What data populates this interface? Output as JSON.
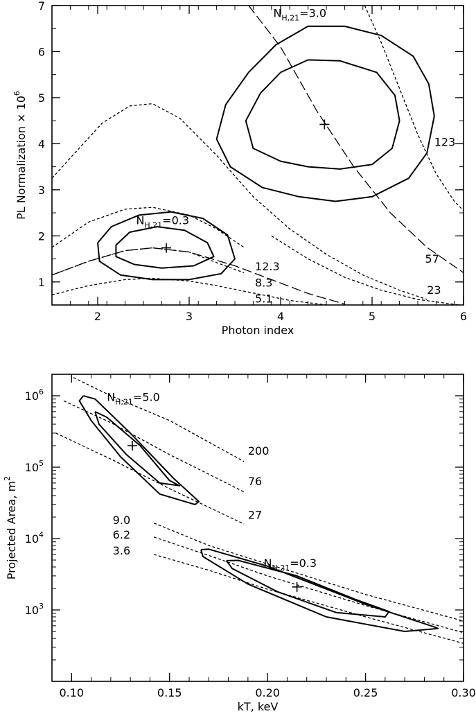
{
  "chart_data": [
    {
      "type": "line",
      "xlabel": "Photon index",
      "ylabel": "PL Normalization × 10",
      "ylabel_exp": "6",
      "xlim": [
        1.5,
        6.0
      ],
      "ylim": [
        0.5,
        7.0
      ],
      "xticks": [
        2,
        3,
        4,
        5,
        6
      ],
      "yticks": [
        1,
        2,
        3,
        4,
        5,
        6,
        7
      ],
      "annotations": [
        {
          "text": "N",
          "sub": "H,21",
          "suffix": "=3.0",
          "x": 3.92,
          "y": 6.75
        },
        {
          "text": "N",
          "sub": "H,21",
          "suffix": "=0.3",
          "x": 2.42,
          "y": 2.25
        },
        {
          "text": "123",
          "x": 5.68,
          "y": 3.95
        },
        {
          "text": "57",
          "x": 5.58,
          "y": 1.42
        },
        {
          "text": "23",
          "x": 5.6,
          "y": 0.74
        },
        {
          "text": "12.3",
          "x": 3.72,
          "y": 1.25
        },
        {
          "text": "8.3",
          "x": 3.72,
          "y": 0.9
        },
        {
          "text": "5.1",
          "x": 3.72,
          "y": 0.55
        }
      ],
      "best_fit": [
        {
          "x": 4.48,
          "y": 4.42
        },
        {
          "x": 2.75,
          "y": 1.74
        }
      ],
      "contours": [
        {
          "name": "NH 3.0 inner",
          "points": [
            [
              4.3,
              5.82
            ],
            [
              4.65,
              5.8
            ],
            [
              5.05,
              5.55
            ],
            [
              5.25,
              5.05
            ],
            [
              5.3,
              4.5
            ],
            [
              5.22,
              3.9
            ],
            [
              5.0,
              3.55
            ],
            [
              4.65,
              3.45
            ],
            [
              4.3,
              3.5
            ],
            [
              4.0,
              3.62
            ],
            [
              3.7,
              3.9
            ],
            [
              3.62,
              4.5
            ],
            [
              3.78,
              5.1
            ],
            [
              4.0,
              5.55
            ],
            [
              4.3,
              5.82
            ]
          ]
        },
        {
          "name": "NH 3.0 outer",
          "points": [
            [
              4.3,
              6.55
            ],
            [
              4.7,
              6.55
            ],
            [
              5.1,
              6.35
            ],
            [
              5.45,
              5.9
            ],
            [
              5.62,
              5.3
            ],
            [
              5.68,
              4.6
            ],
            [
              5.6,
              3.8
            ],
            [
              5.4,
              3.25
            ],
            [
              5.0,
              2.85
            ],
            [
              4.6,
              2.75
            ],
            [
              4.2,
              2.85
            ],
            [
              3.8,
              3.05
            ],
            [
              3.45,
              3.5
            ],
            [
              3.3,
              4.1
            ],
            [
              3.4,
              4.85
            ],
            [
              3.65,
              5.55
            ],
            [
              3.95,
              6.15
            ],
            [
              4.3,
              6.55
            ]
          ]
        },
        {
          "name": "NH 0.3 inner",
          "points": [
            [
              2.2,
              1.8
            ],
            [
              2.35,
              2.08
            ],
            [
              2.65,
              2.2
            ],
            [
              2.95,
              2.12
            ],
            [
              3.2,
              1.85
            ],
            [
              3.27,
              1.55
            ],
            [
              3.05,
              1.35
            ],
            [
              2.7,
              1.3
            ],
            [
              2.4,
              1.38
            ],
            [
              2.2,
              1.55
            ],
            [
              2.2,
              1.8
            ]
          ]
        },
        {
          "name": "NH 0.3 outer",
          "points": [
            [
              2.0,
              1.85
            ],
            [
              2.15,
              2.2
            ],
            [
              2.45,
              2.45
            ],
            [
              2.8,
              2.52
            ],
            [
              3.15,
              2.38
            ],
            [
              3.42,
              2.02
            ],
            [
              3.5,
              1.5
            ],
            [
              3.35,
              1.18
            ],
            [
              3.0,
              1.05
            ],
            [
              2.6,
              1.05
            ],
            [
              2.25,
              1.15
            ],
            [
              2.02,
              1.45
            ],
            [
              2.0,
              1.85
            ]
          ]
        }
      ],
      "dashed_curves": [
        {
          "name": "NH 3.0 long-dash",
          "points": [
            [
              3.65,
              7.0
            ],
            [
              4.0,
              6.1
            ],
            [
              4.4,
              4.7
            ],
            [
              4.8,
              3.5
            ],
            [
              5.2,
              2.5
            ],
            [
              5.6,
              1.75
            ],
            [
              6.0,
              1.2
            ]
          ]
        },
        {
          "name": "NH 0.3 long-dash",
          "points": [
            [
              1.5,
              1.15
            ],
            [
              1.9,
              1.45
            ],
            [
              2.3,
              1.68
            ],
            [
              2.6,
              1.74
            ],
            [
              3.0,
              1.65
            ],
            [
              3.5,
              1.35
            ],
            [
              3.9,
              1.05
            ],
            [
              4.3,
              0.75
            ],
            [
              4.7,
              0.52
            ]
          ]
        },
        {
          "name": "123",
          "points": [
            [
              4.92,
              7.0
            ],
            [
              5.1,
              6.2
            ],
            [
              5.3,
              5.2
            ],
            [
              5.5,
              4.2
            ],
            [
              5.7,
              3.35
            ],
            [
              5.9,
              2.75
            ],
            [
              6.0,
              2.55
            ]
          ]
        },
        {
          "name": "57",
          "points": [
            [
              1.5,
              3.25
            ],
            [
              1.75,
              3.8
            ],
            [
              2.05,
              4.45
            ],
            [
              2.35,
              4.82
            ],
            [
              2.6,
              4.87
            ],
            [
              2.9,
              4.55
            ],
            [
              3.3,
              3.75
            ],
            [
              3.7,
              2.85
            ],
            [
              4.1,
              2.15
            ],
            [
              4.5,
              1.6
            ],
            [
              4.9,
              1.15
            ],
            [
              5.3,
              0.82
            ],
            [
              5.6,
              0.62
            ]
          ]
        },
        {
          "name": "23",
          "points": [
            [
              3.9,
              2.0
            ],
            [
              4.3,
              1.5
            ],
            [
              4.7,
              1.1
            ],
            [
              5.1,
              0.82
            ],
            [
              5.5,
              0.62
            ],
            [
              5.95,
              0.5
            ]
          ]
        },
        {
          "name": "12.3",
          "points": [
            [
              1.5,
              1.75
            ],
            [
              1.9,
              2.3
            ],
            [
              2.3,
              2.58
            ],
            [
              2.6,
              2.62
            ],
            [
              3.0,
              2.45
            ],
            [
              3.3,
              2.15
            ],
            [
              3.6,
              1.75
            ]
          ]
        },
        {
          "name": "8.3",
          "points": [
            [
              1.5,
              1.15
            ],
            [
              1.9,
              1.45
            ],
            [
              2.3,
              1.68
            ],
            [
              2.6,
              1.74
            ],
            [
              3.0,
              1.65
            ],
            [
              3.3,
              1.42
            ],
            [
              3.6,
              1.2
            ]
          ]
        },
        {
          "name": "5.1",
          "points": [
            [
              1.5,
              0.72
            ],
            [
              1.9,
              0.92
            ],
            [
              2.3,
              1.05
            ],
            [
              2.6,
              1.08
            ],
            [
              3.0,
              1.02
            ],
            [
              3.3,
              0.92
            ],
            [
              3.6,
              0.8
            ],
            [
              4.1,
              0.6
            ],
            [
              4.5,
              0.5
            ]
          ]
        }
      ]
    },
    {
      "type": "line",
      "xlabel": "kT, keV",
      "ylabel": "Projected Area, m",
      "ylabel_exp": "2",
      "ylog": true,
      "xlim": [
        0.09,
        0.3
      ],
      "ylim": [
        100,
        2000000
      ],
      "xticks": [
        0.1,
        0.15,
        0.2,
        0.25,
        0.3
      ],
      "xticklabels": [
        "0.10",
        "0.15",
        "0.20",
        "0.25",
        "0.30"
      ],
      "yticks_log_exp": [
        3,
        4,
        5,
        6
      ],
      "annotations": [
        {
          "text": "N",
          "sub": "H,21",
          "suffix": "=5.0",
          "x": 0.118,
          "y": 850000
        },
        {
          "text": "N",
          "sub": "H,21",
          "suffix": "=0.3",
          "x": 0.198,
          "y": 4000
        },
        {
          "text": "200",
          "x": 0.19,
          "y": 150000
        },
        {
          "text": "76",
          "x": 0.19,
          "y": 56000
        },
        {
          "text": "27",
          "x": 0.19,
          "y": 19000
        },
        {
          "text": "9.0",
          "x": 0.121,
          "y": 16000
        },
        {
          "text": "6.2",
          "x": 0.121,
          "y": 10000
        },
        {
          "text": "3.6",
          "x": 0.121,
          "y": 6000
        }
      ],
      "best_fit": [
        {
          "x": 0.131,
          "y": 200000
        },
        {
          "x": 0.215,
          "y": 2100
        }
      ],
      "contours": [
        {
          "name": "NH 5.0 outer",
          "points": [
            [
              0.106,
              1000000
            ],
            [
              0.112,
              900000
            ],
            [
              0.13,
              300000
            ],
            [
              0.152,
              70000
            ],
            [
              0.165,
              33000
            ],
            [
              0.163,
              30000
            ],
            [
              0.145,
              42000
            ],
            [
              0.125,
              140000
            ],
            [
              0.11,
              450000
            ],
            [
              0.104,
              850000
            ],
            [
              0.106,
              1000000
            ]
          ]
        },
        {
          "name": "NH 5.0 inner",
          "points": [
            [
              0.112,
              600000
            ],
            [
              0.118,
              500000
            ],
            [
              0.135,
              200000
            ],
            [
              0.15,
              65000
            ],
            [
              0.155,
              55000
            ],
            [
              0.145,
              60000
            ],
            [
              0.128,
              150000
            ],
            [
              0.114,
              400000
            ],
            [
              0.112,
              600000
            ]
          ]
        },
        {
          "name": "NH 0.3 outer",
          "points": [
            [
              0.166,
              7000
            ],
            [
              0.17,
              7100
            ],
            [
              0.2,
              4100
            ],
            [
              0.25,
              1200
            ],
            [
              0.285,
              580
            ],
            [
              0.287,
              550
            ],
            [
              0.27,
              500
            ],
            [
              0.23,
              800
            ],
            [
              0.19,
              2300
            ],
            [
              0.167,
              5600
            ],
            [
              0.166,
              7000
            ]
          ]
        },
        {
          "name": "NH 0.3 inner",
          "points": [
            [
              0.179,
              4900
            ],
            [
              0.185,
              4950
            ],
            [
              0.215,
              3000
            ],
            [
              0.245,
              1400
            ],
            [
              0.262,
              950
            ],
            [
              0.26,
              800
            ],
            [
              0.235,
              920
            ],
            [
              0.205,
              1800
            ],
            [
              0.182,
              3800
            ],
            [
              0.179,
              4900
            ]
          ]
        }
      ],
      "dashed_curves": [
        {
          "name": "200",
          "points": [
            [
              0.101,
              1800000
            ],
            [
              0.12,
              1000000
            ],
            [
              0.15,
              450000
            ],
            [
              0.188,
              120000
            ]
          ]
        },
        {
          "name": "76",
          "points": [
            [
              0.096,
              850000
            ],
            [
              0.12,
              420000
            ],
            [
              0.15,
              150000
            ],
            [
              0.188,
              45000
            ]
          ]
        },
        {
          "name": "27",
          "points": [
            [
              0.092,
              300000
            ],
            [
              0.12,
              130000
            ],
            [
              0.15,
              50000
            ],
            [
              0.188,
              16000
            ]
          ]
        },
        {
          "name": "9.0",
          "points": [
            [
              0.142,
              16500
            ],
            [
              0.17,
              8000
            ],
            [
              0.2,
              4400
            ],
            [
              0.25,
              1650
            ],
            [
              0.3,
              700
            ]
          ]
        },
        {
          "name": "6.2",
          "points": [
            [
              0.142,
              10500
            ],
            [
              0.17,
              5800
            ],
            [
              0.2,
              3000
            ],
            [
              0.25,
              1150
            ],
            [
              0.3,
              480
            ]
          ]
        },
        {
          "name": "3.6",
          "points": [
            [
              0.142,
              6000
            ],
            [
              0.17,
              3600
            ],
            [
              0.2,
              1950
            ],
            [
              0.25,
              800
            ],
            [
              0.3,
              340
            ]
          ]
        }
      ]
    }
  ]
}
